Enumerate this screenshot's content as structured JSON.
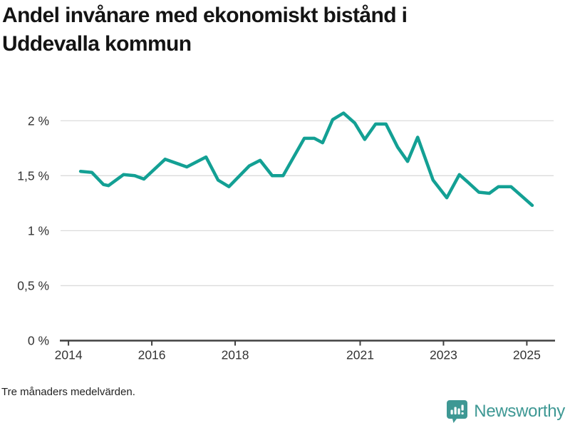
{
  "page": {
    "title_line1": "Andel invånare med ekonomiskt bistånd i",
    "title_line2": "Uddevalla kommun",
    "footnote": "Tre månaders medelvärden.",
    "brand": {
      "name": "Newsworthy",
      "color": "#3E9894",
      "icon": "newsworthy-bar-chart-bubble-icon"
    }
  },
  "chart_data": {
    "type": "line",
    "title": "Andel invånare med ekonomiskt bistånd i Uddevalla kommun",
    "xlabel": "",
    "ylabel": "",
    "x_unit": "year",
    "y_unit": "%",
    "xlim": [
      2013.81,
      2025.66
    ],
    "ylim": [
      0,
      2.19
    ],
    "grid": true,
    "legend_position": "none",
    "line_color": "#13A094",
    "axis_color": "#404040",
    "grid_color": "#DBDBDB",
    "tick_label_color": "#333333",
    "x_ticks": [
      {
        "value": 2014,
        "label": "2014"
      },
      {
        "value": 2016,
        "label": "2016"
      },
      {
        "value": 2018,
        "label": "2018"
      },
      {
        "value": 2021,
        "label": "2021"
      },
      {
        "value": 2023,
        "label": "2023"
      },
      {
        "value": 2025,
        "label": "2025"
      }
    ],
    "y_ticks": [
      {
        "value": 0,
        "label": "0 %"
      },
      {
        "value": 0.5,
        "label": "0,5 %"
      },
      {
        "value": 1,
        "label": "1 %"
      },
      {
        "value": 1.5,
        "label": "1,5 %"
      },
      {
        "value": 2,
        "label": "2 %"
      }
    ],
    "series": [
      {
        "name": "Andel invånare med ekonomiskt bistånd",
        "color": "#13A094",
        "points": [
          [
            2014.29,
            1.54
          ],
          [
            2014.56,
            1.53
          ],
          [
            2014.84,
            1.42
          ],
          [
            2014.96,
            1.41
          ],
          [
            2015.32,
            1.51
          ],
          [
            2015.59,
            1.5
          ],
          [
            2015.81,
            1.47
          ],
          [
            2016.32,
            1.65
          ],
          [
            2016.84,
            1.58
          ],
          [
            2017.3,
            1.67
          ],
          [
            2017.59,
            1.46
          ],
          [
            2017.85,
            1.4
          ],
          [
            2018.34,
            1.59
          ],
          [
            2018.6,
            1.64
          ],
          [
            2018.89,
            1.5
          ],
          [
            2019.15,
            1.5
          ],
          [
            2019.66,
            1.84
          ],
          [
            2019.9,
            1.84
          ],
          [
            2020.1,
            1.8
          ],
          [
            2020.34,
            2.01
          ],
          [
            2020.6,
            2.07
          ],
          [
            2020.87,
            1.98
          ],
          [
            2021.11,
            1.83
          ],
          [
            2021.37,
            1.97
          ],
          [
            2021.62,
            1.97
          ],
          [
            2021.9,
            1.76
          ],
          [
            2022.14,
            1.63
          ],
          [
            2022.38,
            1.85
          ],
          [
            2022.75,
            1.46
          ],
          [
            2023.08,
            1.3
          ],
          [
            2023.38,
            1.51
          ],
          [
            2023.59,
            1.44
          ],
          [
            2023.85,
            1.35
          ],
          [
            2024.1,
            1.34
          ],
          [
            2024.32,
            1.4
          ],
          [
            2024.62,
            1.4
          ],
          [
            2024.89,
            1.31
          ],
          [
            2025.13,
            1.23
          ]
        ]
      }
    ]
  }
}
